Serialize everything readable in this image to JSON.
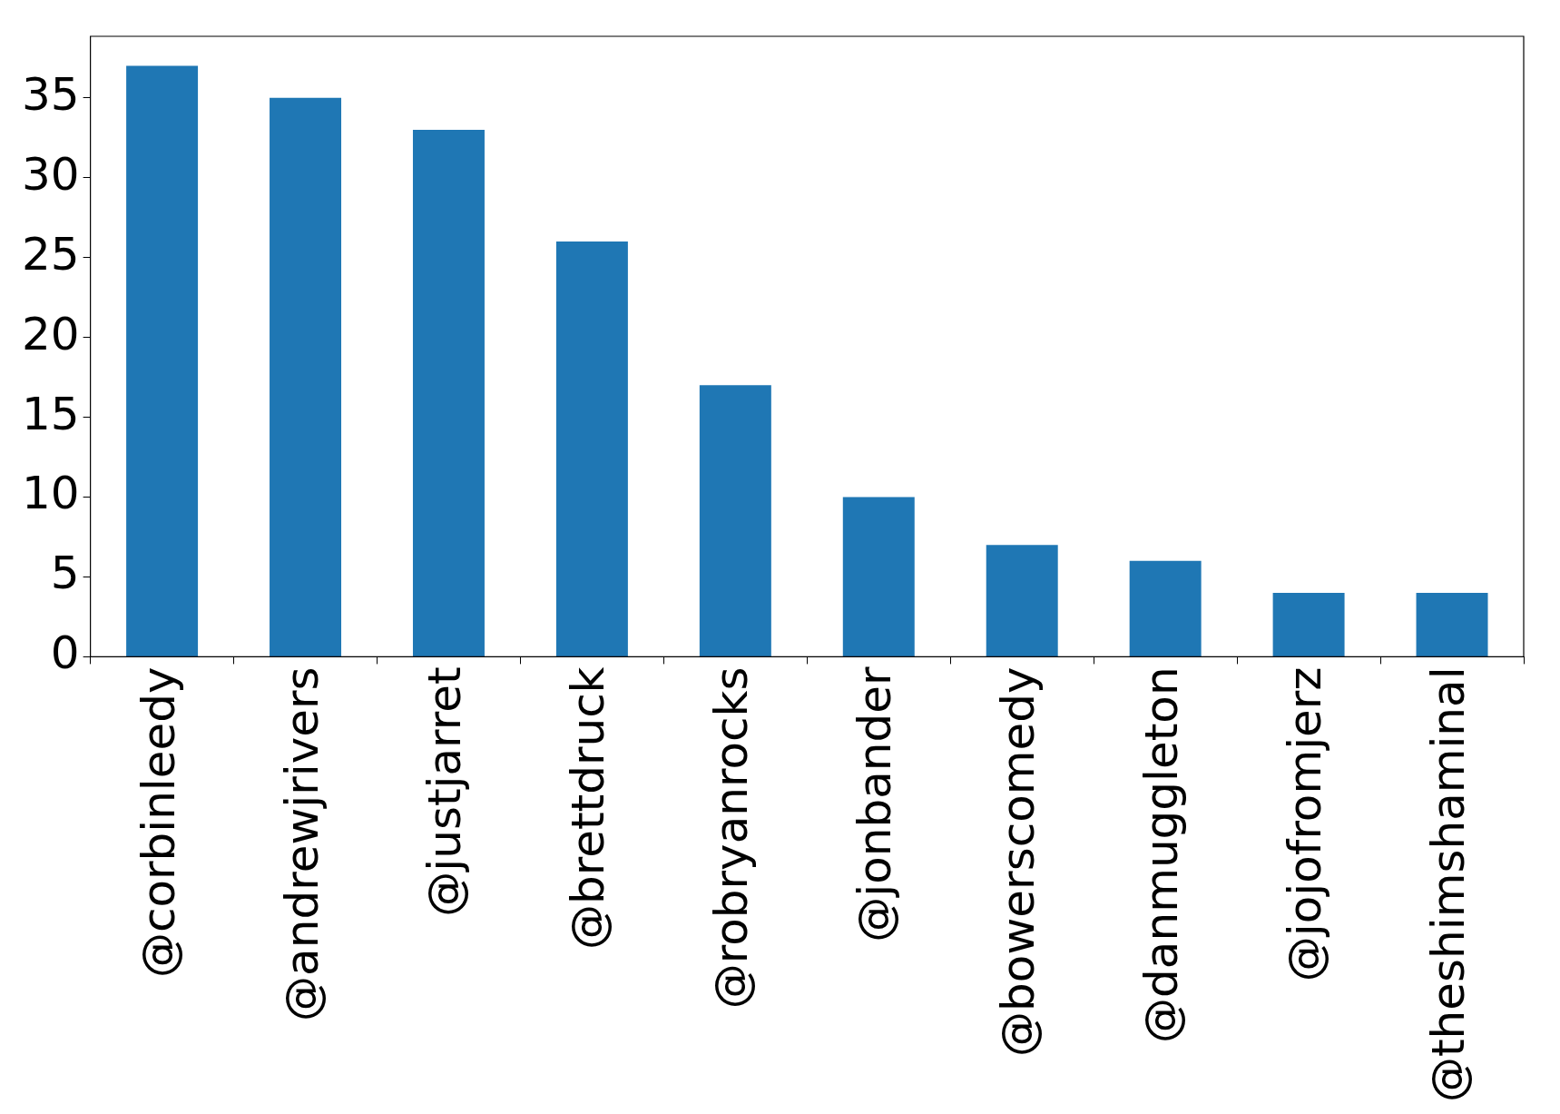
{
  "chart_data": {
    "type": "bar",
    "categories": [
      "@corbinleedy",
      "@andrewjrivers",
      "@justjarret",
      "@brettdruck",
      "@robryanrocks",
      "@jonbander",
      "@bowerscomedy",
      "@danmuggleton",
      "@jojofromjerz",
      "@theshimshaminal"
    ],
    "values": [
      37,
      35,
      33,
      26,
      17,
      10,
      7,
      6,
      4,
      4
    ],
    "color": "#1f77b4",
    "ylim": [
      0,
      38.85
    ],
    "yticks": [
      0,
      5,
      10,
      15,
      20,
      25,
      30,
      35
    ],
    "grid": false,
    "legend": false
  }
}
